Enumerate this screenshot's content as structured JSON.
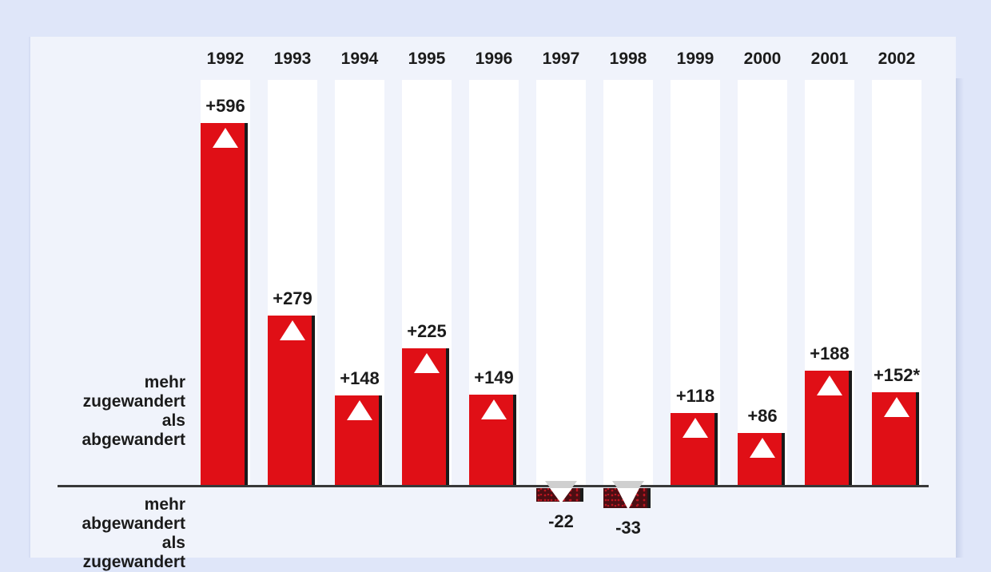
{
  "chart_data": {
    "type": "bar",
    "categories": [
      "1992",
      "1993",
      "1994",
      "1995",
      "1996",
      "1997",
      "1998",
      "1999",
      "2000",
      "2001",
      "2002"
    ],
    "values": [
      596,
      279,
      148,
      225,
      149,
      -22,
      -33,
      118,
      86,
      188,
      152
    ],
    "value_labels": [
      "+596",
      "+279",
      "+148",
      "+225",
      "+149",
      "-22",
      "-33",
      "+118",
      "+86",
      "+188",
      "+152*"
    ],
    "title": "",
    "xlabel": "",
    "ylabel": "",
    "ylim": [
      -60,
      640
    ],
    "grid": "off",
    "legend": "none",
    "axis_label_positive": "mehr zugewandert als abgewandert",
    "axis_label_negative": "mehr abgewandert als zugewandert",
    "colors": {
      "page_bg": "#dfe6f9",
      "panel_bg": "#f0f3fb",
      "band_bg": "#ffffff",
      "bar_positive": "#e00f16",
      "bar_negative": "#4c0e13",
      "bar_negative_speckle": "#bb1520",
      "bar_shadow_edge": "#1a1a1a",
      "baseline": "#383838",
      "text": "#1b1b1b",
      "triangle_positive": "#ffffff",
      "triangle_negative_cap": "#cfcfcf"
    }
  },
  "side_labels": {
    "positive_lines": [
      "mehr",
      "zugewandert",
      "als",
      "abgewandert"
    ],
    "negative_lines": [
      "mehr",
      "abgewandert",
      "als",
      "zugewandert"
    ]
  }
}
